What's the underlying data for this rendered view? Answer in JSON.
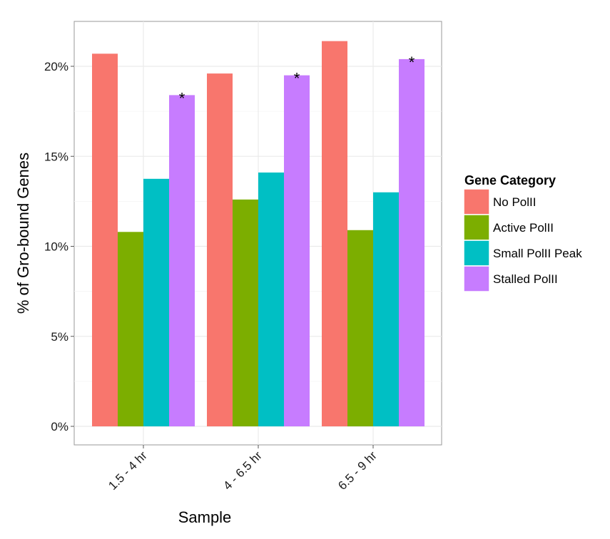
{
  "chart_data": {
    "type": "bar",
    "xlabel": "Sample",
    "ylabel": "% of Gro-bound Genes",
    "categories": [
      "1.5 - 4 hr",
      "4 - 6.5 hr",
      "6.5 - 9 hr"
    ],
    "ylim": [
      0,
      0.2225
    ],
    "yticks": [
      0,
      0.05,
      0.1,
      0.15,
      0.2
    ],
    "ytick_labels": [
      "0%",
      "5%",
      "10%",
      "15%",
      "20%"
    ],
    "grid": true,
    "legend": {
      "title": "Gene Category",
      "position": "right"
    },
    "series": [
      {
        "name": "No PolII",
        "color": "#F8766D",
        "values": [
          0.207,
          0.196,
          0.214
        ]
      },
      {
        "name": "Active PolII",
        "color": "#7CAE00",
        "values": [
          0.108,
          0.126,
          0.109
        ]
      },
      {
        "name": "Small PolII Peak",
        "color": "#00BFC4",
        "values": [
          0.1375,
          0.141,
          0.13
        ]
      },
      {
        "name": "Stalled PolII",
        "color": "#C77CFF",
        "values": [
          0.184,
          0.195,
          0.204
        ]
      }
    ],
    "annotations": [
      {
        "text": "*",
        "category": "1.5 - 4 hr",
        "series": "Stalled PolII"
      },
      {
        "text": "*",
        "category": "4 - 6.5 hr",
        "series": "Stalled PolII"
      },
      {
        "text": "*",
        "category": "6.5 - 9 hr",
        "series": "Stalled PolII"
      }
    ]
  }
}
